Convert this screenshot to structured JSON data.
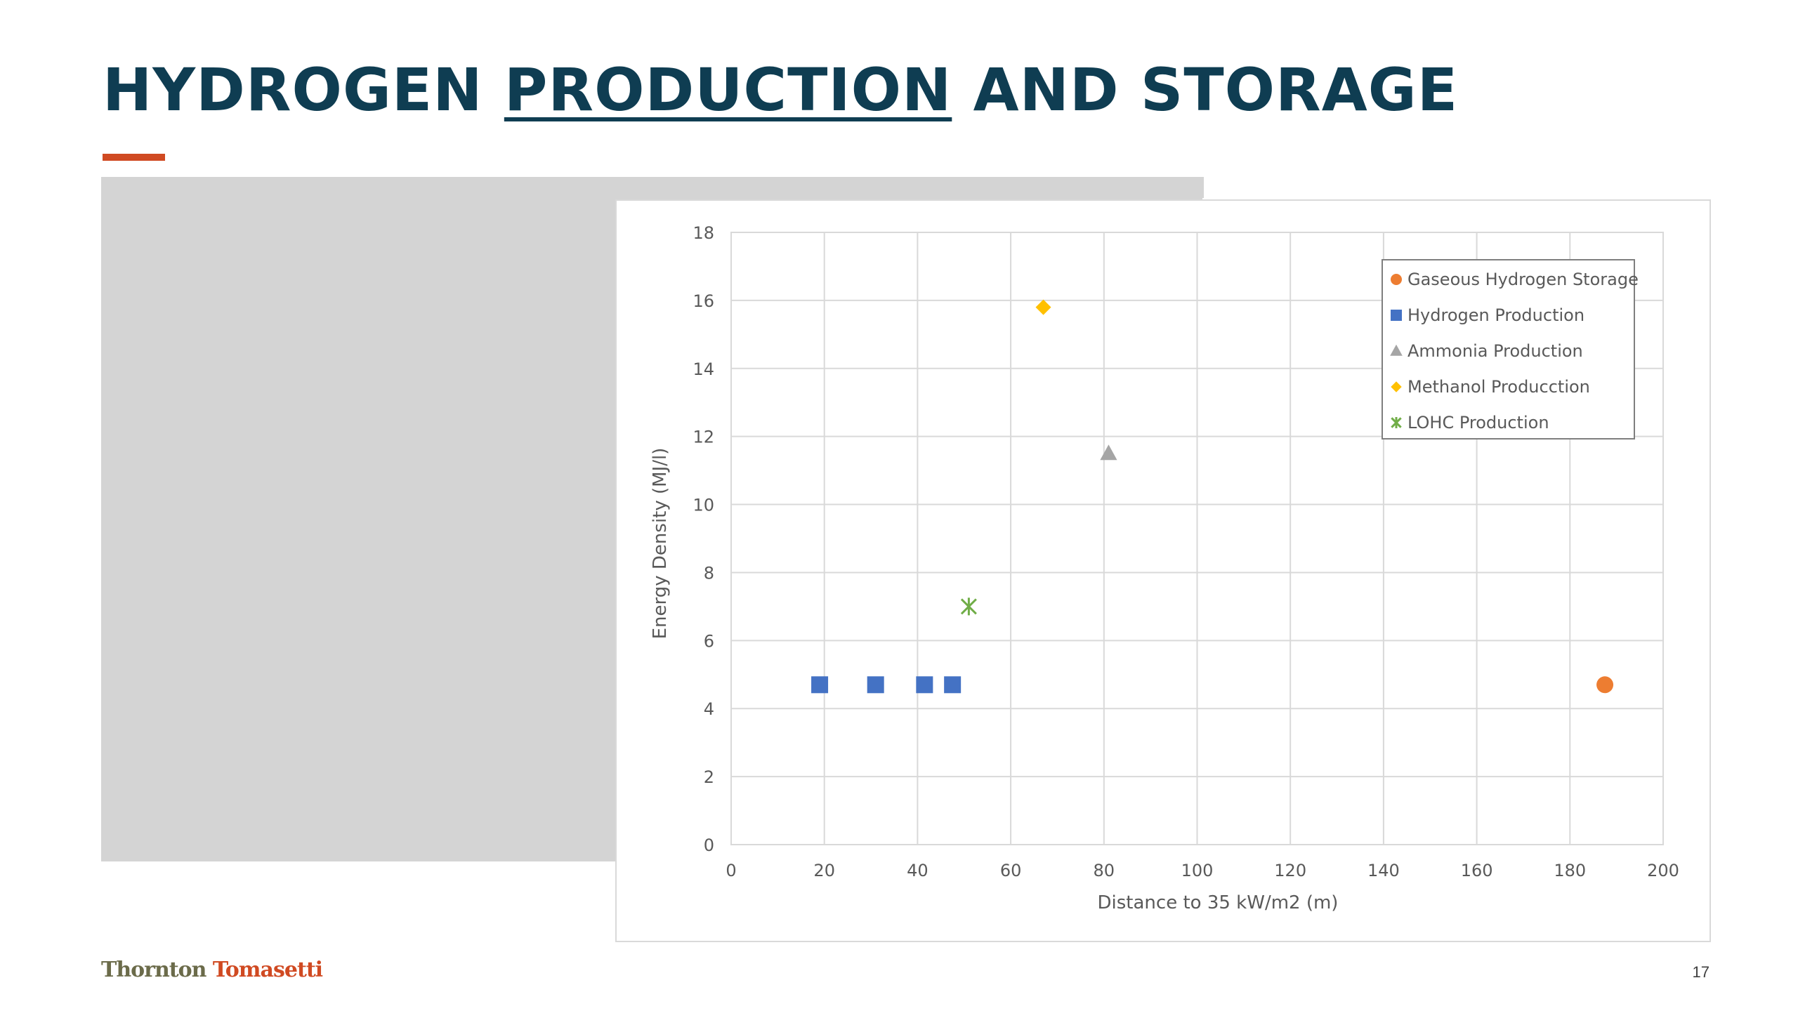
{
  "slide": {
    "title_before": "HYDROGEN ",
    "title_underlined": "PRODUCTION",
    "title_after": " AND STORAGE",
    "logo_part1": "Thornton",
    "logo_part2": "Tomasetti",
    "page_number": "17",
    "colors": {
      "title": "#0f3d52",
      "accent": "#d04a22",
      "logo_part1": "#6b6b4a",
      "logo_part2": "#d04a22"
    }
  },
  "chart_data": {
    "type": "scatter",
    "title": "",
    "xlabel": "Distance to 35 kW/m2 (m)",
    "ylabel": "Energy Density (MJ/l)",
    "xlim": [
      0,
      200
    ],
    "ylim": [
      0,
      18
    ],
    "xticks": [
      0,
      20,
      40,
      60,
      80,
      100,
      120,
      140,
      160,
      180,
      200
    ],
    "yticks": [
      0,
      2,
      4,
      6,
      8,
      10,
      12,
      14,
      16,
      18
    ],
    "grid": true,
    "legend_position": "top-right",
    "series": [
      {
        "name": "Gaseous Hydrogen Storage",
        "marker": "circle",
        "color": "#ed7d31",
        "points": [
          [
            187.5,
            4.7
          ]
        ]
      },
      {
        "name": "Hydrogen Production",
        "marker": "square",
        "color": "#4472c4",
        "points": [
          [
            19,
            4.7
          ],
          [
            31,
            4.7
          ],
          [
            41.5,
            4.7
          ],
          [
            47.5,
            4.7
          ]
        ]
      },
      {
        "name": "Ammonia Production",
        "marker": "triangle",
        "color": "#a5a5a5",
        "points": [
          [
            81,
            11.5
          ]
        ]
      },
      {
        "name": "Methanol Producction",
        "marker": "diamond",
        "color": "#ffc000",
        "points": [
          [
            67,
            15.8
          ]
        ]
      },
      {
        "name": "LOHC Production",
        "marker": "star",
        "color": "#70ad47",
        "points": [
          [
            51,
            7
          ]
        ]
      }
    ]
  }
}
